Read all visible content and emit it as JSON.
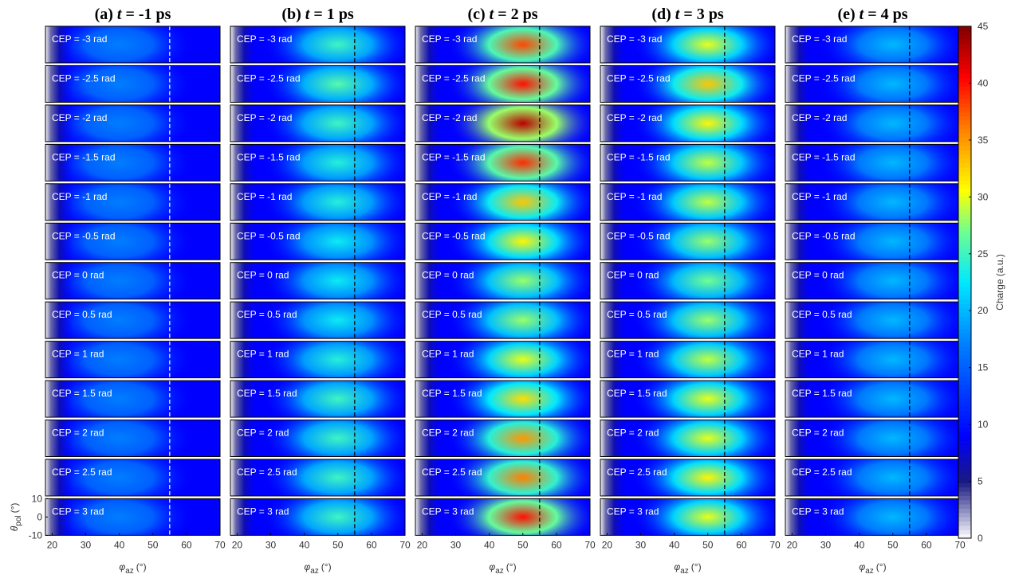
{
  "chart_data": {
    "type": "heatmap-grid",
    "columns": [
      {
        "label": "(a)",
        "var": "t",
        "value": "= -1 ps",
        "peak_x": 40,
        "marker_color": "#ffffff",
        "peaks": [
          17,
          17,
          17,
          17,
          17,
          17,
          17,
          17,
          17,
          17,
          17,
          17,
          17
        ]
      },
      {
        "label": "(b)",
        "var": "t",
        "value": "= 1 ps",
        "peak_x": 50,
        "marker_color": "#000000",
        "peaks": [
          25,
          26,
          25,
          24,
          24,
          23,
          23,
          23,
          24,
          25,
          25,
          25,
          25
        ]
      },
      {
        "label": "(c)",
        "var": "t",
        "value": "= 2 ps",
        "peak_x": 50,
        "marker_color": "#000000",
        "peaks": [
          38,
          40,
          43,
          39,
          33,
          31,
          28,
          28,
          30,
          32,
          35,
          36,
          40
        ]
      },
      {
        "label": "(d)",
        "var": "t",
        "value": "= 3 ps",
        "peak_x": 50,
        "marker_color": "#000000",
        "peaks": [
          30,
          33,
          31,
          29,
          29,
          28,
          27,
          28,
          29,
          30,
          30,
          31,
          30
        ]
      },
      {
        "label": "(e)",
        "var": "t",
        "value": "= 4 ps",
        "peak_x": 50,
        "marker_color": "#000000",
        "peaks": [
          20,
          20,
          20,
          20,
          20,
          20,
          20,
          20,
          20,
          20,
          20,
          20,
          20
        ]
      }
    ],
    "rows": [
      "CEP = -3 rad",
      "CEP = -2.5 rad",
      "CEP = -2 rad",
      "CEP = -1.5 rad",
      "CEP = -1 rad",
      "CEP = -0.5 rad",
      "CEP = 0 rad",
      "CEP = 0.5 rad",
      "CEP = 1 rad",
      "CEP = 1.5 rad",
      "CEP = 2 rad",
      "CEP = 2.5 rad",
      "CEP = 3 rad"
    ],
    "background_value": 9,
    "marker_x": 55,
    "xlim": [
      18,
      70
    ],
    "xticks": [
      20,
      30,
      40,
      50,
      60,
      70
    ],
    "ylim": [
      -10,
      10
    ],
    "yticks": [
      -10,
      0,
      10
    ],
    "x_label": {
      "symbol": "φ",
      "sub": "az",
      "unit": "(°)"
    },
    "y_label": {
      "symbol": "θ",
      "sub": "pol",
      "unit": "(°)"
    },
    "colorbar": {
      "label": "Charge (a.u.)",
      "lim": [
        0,
        45
      ],
      "ticks": [
        0,
        5,
        10,
        15,
        20,
        25,
        30,
        35,
        40,
        45
      ]
    }
  }
}
